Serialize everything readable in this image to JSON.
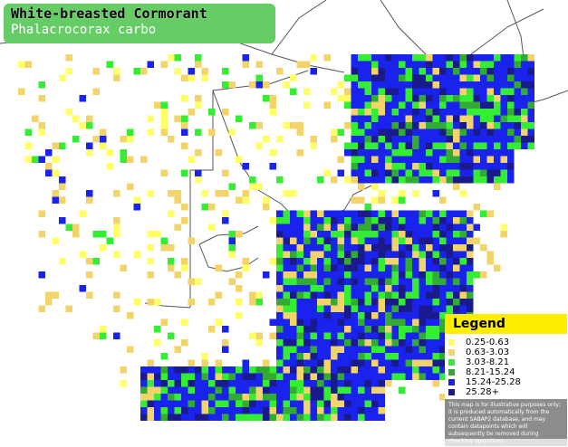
{
  "title": {
    "common_name": "White-breasted Cormorant",
    "scientific_name": "Phalacrocorax carbo"
  },
  "legend": {
    "heading": "Legend",
    "entries": [
      {
        "label": "0.25-0.63",
        "color": "#ffff66"
      },
      {
        "label": "0.63-3.03",
        "color": "#f3d46a"
      },
      {
        "label": "3.03-8.21",
        "color": "#33ee33"
      },
      {
        "label": "8.21-15.24",
        "color": "#33aa33"
      },
      {
        "label": "15.24-25.28",
        "color": "#1a22ee"
      },
      {
        "label": "25.28+",
        "color": "#1a1a8c"
      }
    ],
    "disclaimer": "This map is for illustrative purposes only; it is produced automatically from the current SABAP2 database, and may contain datapoints which will subsequently be removed during checking operations."
  },
  "colors": {
    "background": "#ffffff",
    "border_lines": "#555555",
    "title_box": "#66cc66"
  }
}
